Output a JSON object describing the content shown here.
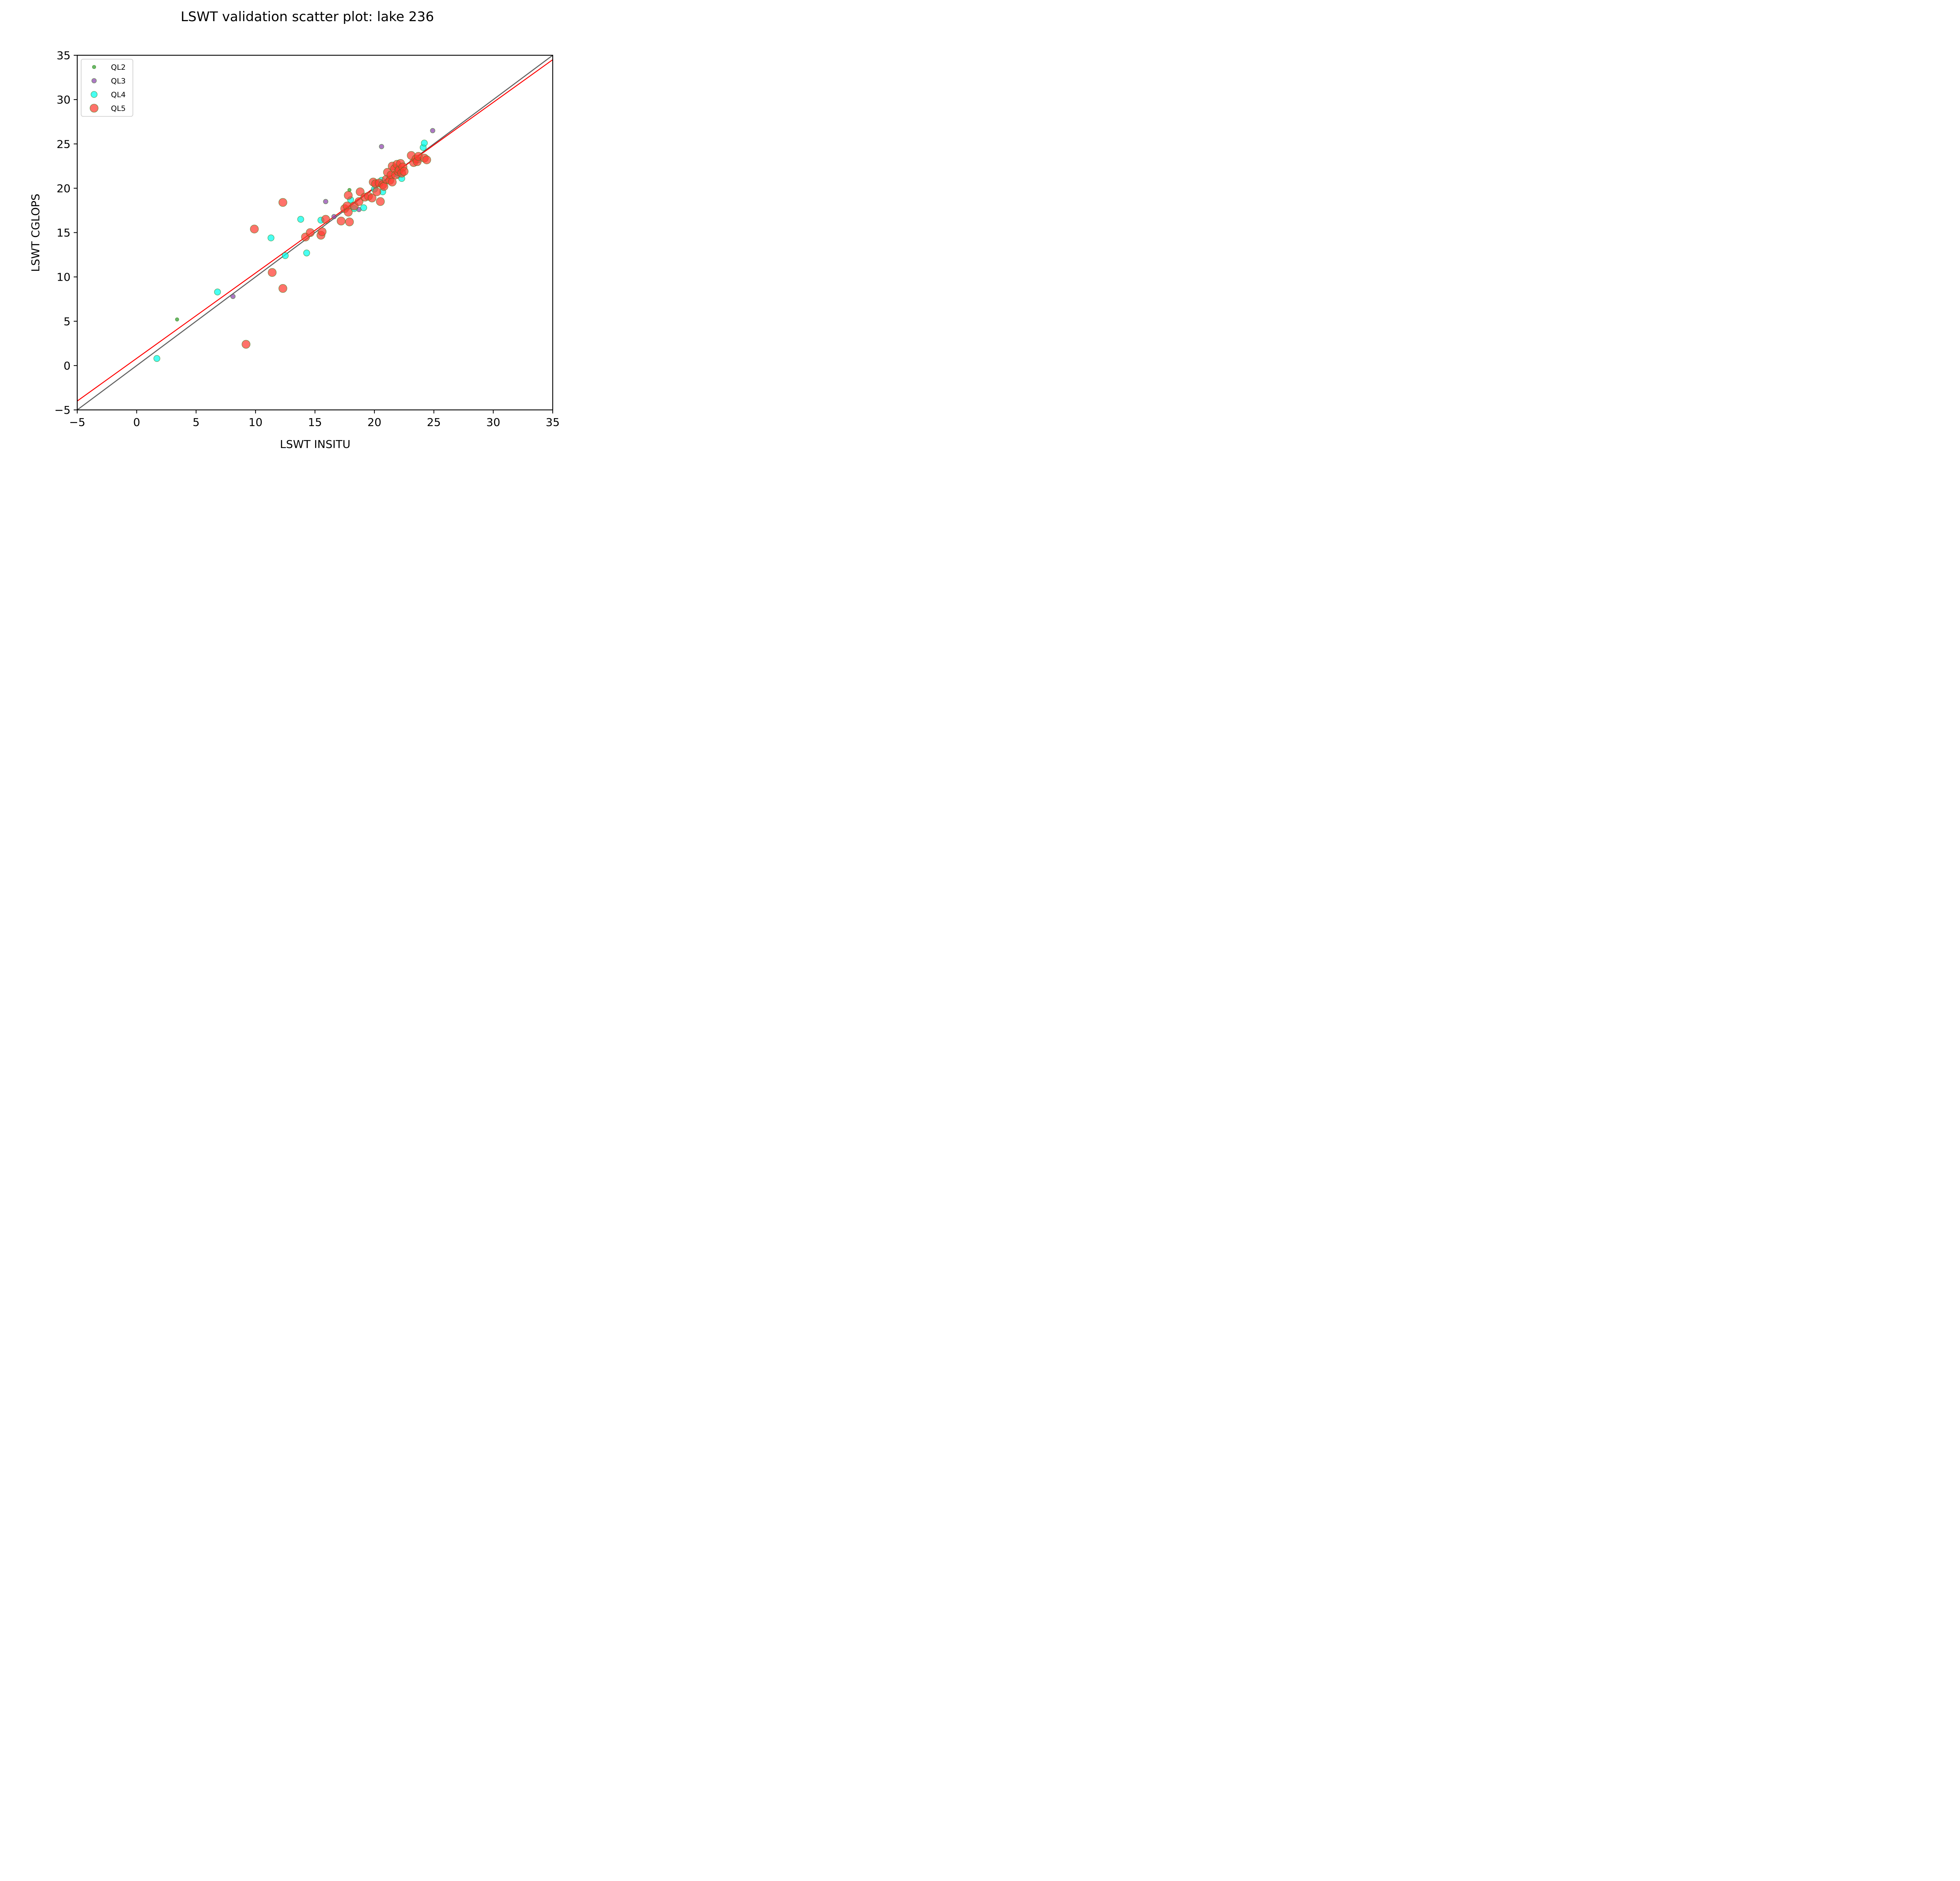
{
  "chart_data": {
    "type": "scatter",
    "title": "LSWT validation scatter plot: lake 236",
    "xlabel": "LSWT INSITU",
    "ylabel": "LSWT CGLOPS",
    "xlim": [
      -5,
      35
    ],
    "ylim": [
      -5,
      35
    ],
    "xticks": [
      "−5",
      "0",
      "5",
      "10",
      "15",
      "20",
      "25",
      "30",
      "35"
    ],
    "yticks": [
      "−5",
      "0",
      "5",
      "10",
      "15",
      "20",
      "25",
      "30",
      "35"
    ],
    "grid": false,
    "legend_position": "upper-left",
    "reference_lines": [
      {
        "kind": "identity",
        "color": "#606060",
        "points": [
          [
            -5,
            -5
          ],
          [
            35,
            35
          ]
        ]
      },
      {
        "kind": "regression",
        "color": "#ff0000",
        "points": [
          [
            -5,
            -4.0
          ],
          [
            35,
            34.5
          ]
        ]
      }
    ],
    "series": [
      {
        "name": "QL2",
        "color": "#2ca02c",
        "size": "small",
        "points": [
          [
            3.4,
            5.2
          ],
          [
            17.9,
            19.8
          ]
        ]
      },
      {
        "name": "QL3",
        "color": "#8e44ad",
        "size": "medium-small",
        "points": [
          [
            8.1,
            7.8
          ],
          [
            15.9,
            18.5
          ],
          [
            16.6,
            16.8
          ],
          [
            18.7,
            17.6
          ],
          [
            20.6,
            24.7
          ],
          [
            24.9,
            26.5
          ]
        ]
      },
      {
        "name": "QL4",
        "color": "#00ffee",
        "size": "medium",
        "points": [
          [
            1.7,
            0.8
          ],
          [
            6.8,
            8.3
          ],
          [
            11.3,
            14.4
          ],
          [
            12.5,
            12.4
          ],
          [
            13.8,
            16.5
          ],
          [
            14.3,
            12.7
          ],
          [
            15.5,
            16.4
          ],
          [
            18.0,
            18.7
          ],
          [
            18.3,
            17.7
          ],
          [
            19.1,
            17.8
          ],
          [
            20.0,
            19.9
          ],
          [
            20.6,
            20.9
          ],
          [
            20.7,
            19.6
          ],
          [
            22.0,
            21.5
          ],
          [
            22.3,
            21.1
          ],
          [
            23.7,
            23.2
          ],
          [
            24.1,
            24.6
          ],
          [
            24.2,
            25.1
          ]
        ]
      },
      {
        "name": "QL5",
        "color": "#ff3b30",
        "size": "large",
        "points": [
          [
            9.2,
            2.4
          ],
          [
            9.9,
            15.4
          ],
          [
            11.4,
            10.5
          ],
          [
            12.3,
            8.7
          ],
          [
            12.3,
            18.4
          ],
          [
            14.2,
            14.5
          ],
          [
            14.6,
            15.0
          ],
          [
            15.5,
            14.7
          ],
          [
            15.6,
            15.1
          ],
          [
            15.9,
            16.5
          ],
          [
            17.2,
            16.3
          ],
          [
            17.5,
            17.7
          ],
          [
            17.7,
            18.0
          ],
          [
            17.8,
            17.3
          ],
          [
            17.8,
            19.2
          ],
          [
            17.9,
            16.2
          ],
          [
            18.3,
            18.0
          ],
          [
            18.7,
            18.5
          ],
          [
            18.8,
            19.6
          ],
          [
            19.2,
            19.0
          ],
          [
            19.5,
            19.1
          ],
          [
            19.8,
            18.9
          ],
          [
            19.9,
            20.7
          ],
          [
            20.1,
            20.5
          ],
          [
            20.2,
            19.6
          ],
          [
            20.4,
            20.6
          ],
          [
            20.5,
            18.5
          ],
          [
            20.7,
            20.4
          ],
          [
            20.8,
            20.2
          ],
          [
            21.0,
            21.0
          ],
          [
            21.1,
            21.8
          ],
          [
            21.3,
            20.9
          ],
          [
            21.4,
            21.5
          ],
          [
            21.5,
            20.7
          ],
          [
            21.5,
            22.5
          ],
          [
            21.7,
            22.2
          ],
          [
            21.8,
            21.5
          ],
          [
            21.9,
            22.7
          ],
          [
            22.0,
            21.9
          ],
          [
            22.1,
            22.1
          ],
          [
            22.2,
            22.8
          ],
          [
            22.3,
            21.7
          ],
          [
            22.4,
            22.4
          ],
          [
            22.5,
            21.9
          ],
          [
            23.1,
            23.7
          ],
          [
            23.3,
            22.9
          ],
          [
            23.5,
            23.3
          ],
          [
            23.6,
            23.0
          ],
          [
            23.7,
            23.6
          ],
          [
            24.2,
            23.4
          ],
          [
            24.4,
            23.2
          ]
        ]
      }
    ]
  }
}
